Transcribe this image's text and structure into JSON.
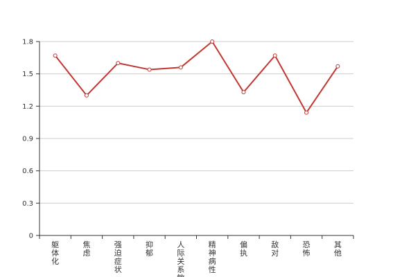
{
  "chart_data": {
    "type": "line",
    "title": "",
    "xlabel": "",
    "ylabel": "",
    "categories": [
      "躯体化",
      "焦虑",
      "强迫症状",
      "抑郁",
      "人际关系敏感",
      "精神病性",
      "偏执",
      "敌对",
      "恐怖",
      "其他"
    ],
    "series": [
      {
        "values": [
          1.67,
          1.3,
          1.6,
          1.54,
          1.56,
          1.8,
          1.33,
          1.67,
          1.14,
          1.57
        ]
      }
    ],
    "ylim": [
      0,
      1.8
    ],
    "yticks": [
      "0",
      "0.3",
      "0.6",
      "0.9",
      "1.2",
      "1.5",
      "1.8"
    ],
    "grid": true,
    "legend": "none",
    "colors": {
      "line": "#c23531"
    }
  }
}
